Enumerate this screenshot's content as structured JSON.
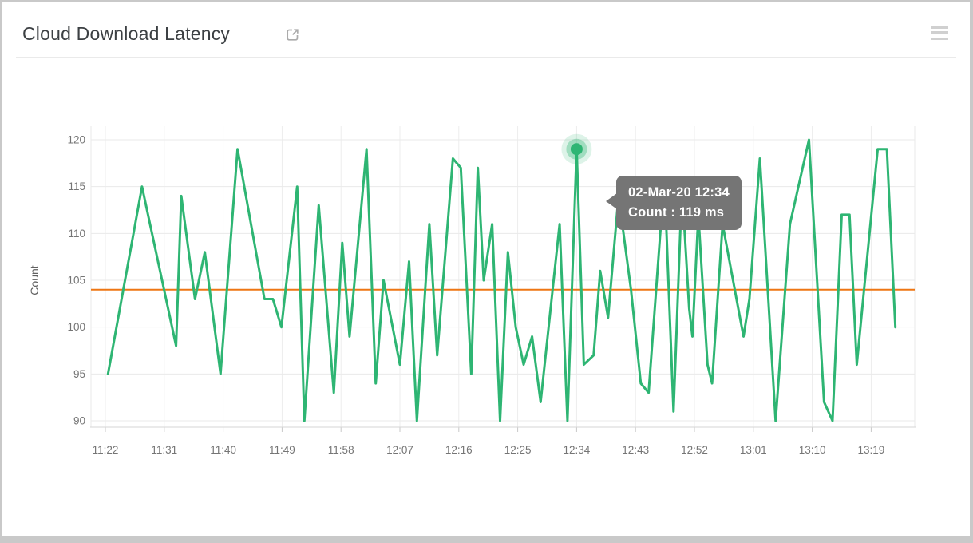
{
  "header": {
    "title": "Cloud Download Latency",
    "external_link_icon": "open-in-new-icon",
    "menu_icon": "hamburger-menu-icon"
  },
  "tooltip": {
    "line1": "02-Mar-20 12:34",
    "line2": "Count : 119 ms"
  },
  "colors": {
    "series_green": "#2eb573",
    "threshold_orange": "#ee7613",
    "tooltip_gray": "#757575",
    "gridline": "#eaeaea",
    "axis_line": "#d6d6d6",
    "tick_text": "#757575",
    "axis_title_text": "#616161"
  },
  "chart_data": {
    "type": "line",
    "title": "Cloud Download Latency",
    "xlabel": "",
    "ylabel": "Count",
    "unit": "ms",
    "grid": true,
    "legend": false,
    "ylim": [
      89.3,
      120.7
    ],
    "y_ticks": [
      120,
      115,
      110,
      105,
      100,
      95,
      90
    ],
    "x_ticks": [
      "11:22",
      "11:31",
      "11:40",
      "11:49",
      "11:58",
      "12:07",
      "12:16",
      "12:25",
      "12:34",
      "12:43",
      "12:52",
      "13:01",
      "13:10",
      "13:19"
    ],
    "x_tick_interval_min": 9,
    "threshold": {
      "value": 104
    },
    "highlight": {
      "index": 39,
      "t": "12:34",
      "v": 119
    },
    "series": [
      {
        "name": "Count",
        "points": [
          {
            "t": "11:22",
            "m": 0.4,
            "v": 95
          },
          {
            "t": "11:28",
            "m": 5.6,
            "v": 115
          },
          {
            "t": "11:33",
            "m": 10.8,
            "v": 98
          },
          {
            "t": "11:34",
            "m": 11.6,
            "v": 114
          },
          {
            "t": "11:36",
            "m": 13.7,
            "v": 103
          },
          {
            "t": "11:37",
            "m": 15.2,
            "v": 108
          },
          {
            "t": "11:40",
            "m": 17.6,
            "v": 95
          },
          {
            "t": "11:42",
            "m": 20.2,
            "v": 119
          },
          {
            "t": "11:46",
            "m": 24.3,
            "v": 103
          },
          {
            "t": "11:48",
            "m": 25.6,
            "v": 103
          },
          {
            "t": "11:49",
            "m": 26.9,
            "v": 100
          },
          {
            "t": "11:51",
            "m": 29.3,
            "v": 115
          },
          {
            "t": "11:52",
            "m": 30.4,
            "v": 90
          },
          {
            "t": "11:55",
            "m": 32.6,
            "v": 113
          },
          {
            "t": "11:57",
            "m": 34.9,
            "v": 93
          },
          {
            "t": "11:58",
            "m": 36.2,
            "v": 109
          },
          {
            "t": "11:59",
            "m": 37.3,
            "v": 99
          },
          {
            "t": "12:02",
            "m": 39.9,
            "v": 119
          },
          {
            "t": "12:03",
            "m": 41.3,
            "v": 94
          },
          {
            "t": "12:05",
            "m": 42.5,
            "v": 105
          },
          {
            "t": "12:07",
            "m": 45.0,
            "v": 96
          },
          {
            "t": "12:08",
            "m": 46.4,
            "v": 107
          },
          {
            "t": "12:10",
            "m": 47.6,
            "v": 90
          },
          {
            "t": "12:12",
            "m": 49.5,
            "v": 111
          },
          {
            "t": "12:13",
            "m": 50.7,
            "v": 97
          },
          {
            "t": "12:15",
            "m": 53.1,
            "v": 118
          },
          {
            "t": "12:16",
            "m": 54.3,
            "v": 117
          },
          {
            "t": "12:18",
            "m": 55.9,
            "v": 95
          },
          {
            "t": "12:19",
            "m": 56.9,
            "v": 117
          },
          {
            "t": "12:20",
            "m": 57.8,
            "v": 105
          },
          {
            "t": "12:21",
            "m": 59.1,
            "v": 111
          },
          {
            "t": "12:22",
            "m": 60.3,
            "v": 90
          },
          {
            "t": "12:24",
            "m": 61.5,
            "v": 108
          },
          {
            "t": "12:25",
            "m": 62.7,
            "v": 100
          },
          {
            "t": "12:26",
            "m": 63.9,
            "v": 96
          },
          {
            "t": "12:27",
            "m": 65.2,
            "v": 99
          },
          {
            "t": "12:29",
            "m": 66.5,
            "v": 92
          },
          {
            "t": "12:31",
            "m": 69.4,
            "v": 111
          },
          {
            "t": "12:33",
            "m": 70.6,
            "v": 90
          },
          {
            "t": "12:34",
            "m": 72.0,
            "v": 119
          },
          {
            "t": "12:35",
            "m": 73.1,
            "v": 96
          },
          {
            "t": "12:37",
            "m": 74.6,
            "v": 97
          },
          {
            "t": "12:38",
            "m": 75.6,
            "v": 106
          },
          {
            "t": "12:39",
            "m": 76.8,
            "v": 101
          },
          {
            "t": "12:40",
            "m": 78.4,
            "v": 114
          },
          {
            "t": "12:42",
            "m": 80.3,
            "v": 104
          },
          {
            "t": "12:44",
            "m": 81.8,
            "v": 94
          },
          {
            "t": "12:45",
            "m": 83.0,
            "v": 93
          },
          {
            "t": "12:47",
            "m": 85.4,
            "v": 116
          },
          {
            "t": "12:49",
            "m": 86.8,
            "v": 91
          },
          {
            "t": "12:50",
            "m": 88.1,
            "v": 115
          },
          {
            "t": "12:51",
            "m": 89.2,
            "v": 102
          },
          {
            "t": "12:52",
            "m": 89.7,
            "v": 99
          },
          {
            "t": "12:53",
            "m": 90.6,
            "v": 112
          },
          {
            "t": "12:54",
            "m": 92.0,
            "v": 96
          },
          {
            "t": "12:55",
            "m": 92.7,
            "v": 94
          },
          {
            "t": "12:56",
            "m": 94.3,
            "v": 111
          },
          {
            "t": "12:59",
            "m": 96.7,
            "v": 102
          },
          {
            "t": "13:00",
            "m": 97.5,
            "v": 99
          },
          {
            "t": "13:00",
            "m": 98.4,
            "v": 103
          },
          {
            "t": "13:02",
            "m": 100.0,
            "v": 118
          },
          {
            "t": "13:04",
            "m": 102.4,
            "v": 90
          },
          {
            "t": "13:07",
            "m": 104.6,
            "v": 111
          },
          {
            "t": "13:10",
            "m": 107.5,
            "v": 120
          },
          {
            "t": "13:12",
            "m": 109.8,
            "v": 92
          },
          {
            "t": "13:13",
            "m": 111.1,
            "v": 90
          },
          {
            "t": "13:15",
            "m": 112.5,
            "v": 112
          },
          {
            "t": "13:16",
            "m": 113.7,
            "v": 112
          },
          {
            "t": "13:17",
            "m": 114.8,
            "v": 96
          },
          {
            "t": "13:20",
            "m": 118.0,
            "v": 119
          },
          {
            "t": "13:21",
            "m": 119.4,
            "v": 119
          },
          {
            "t": "13:23",
            "m": 120.7,
            "v": 100
          }
        ]
      }
    ]
  }
}
